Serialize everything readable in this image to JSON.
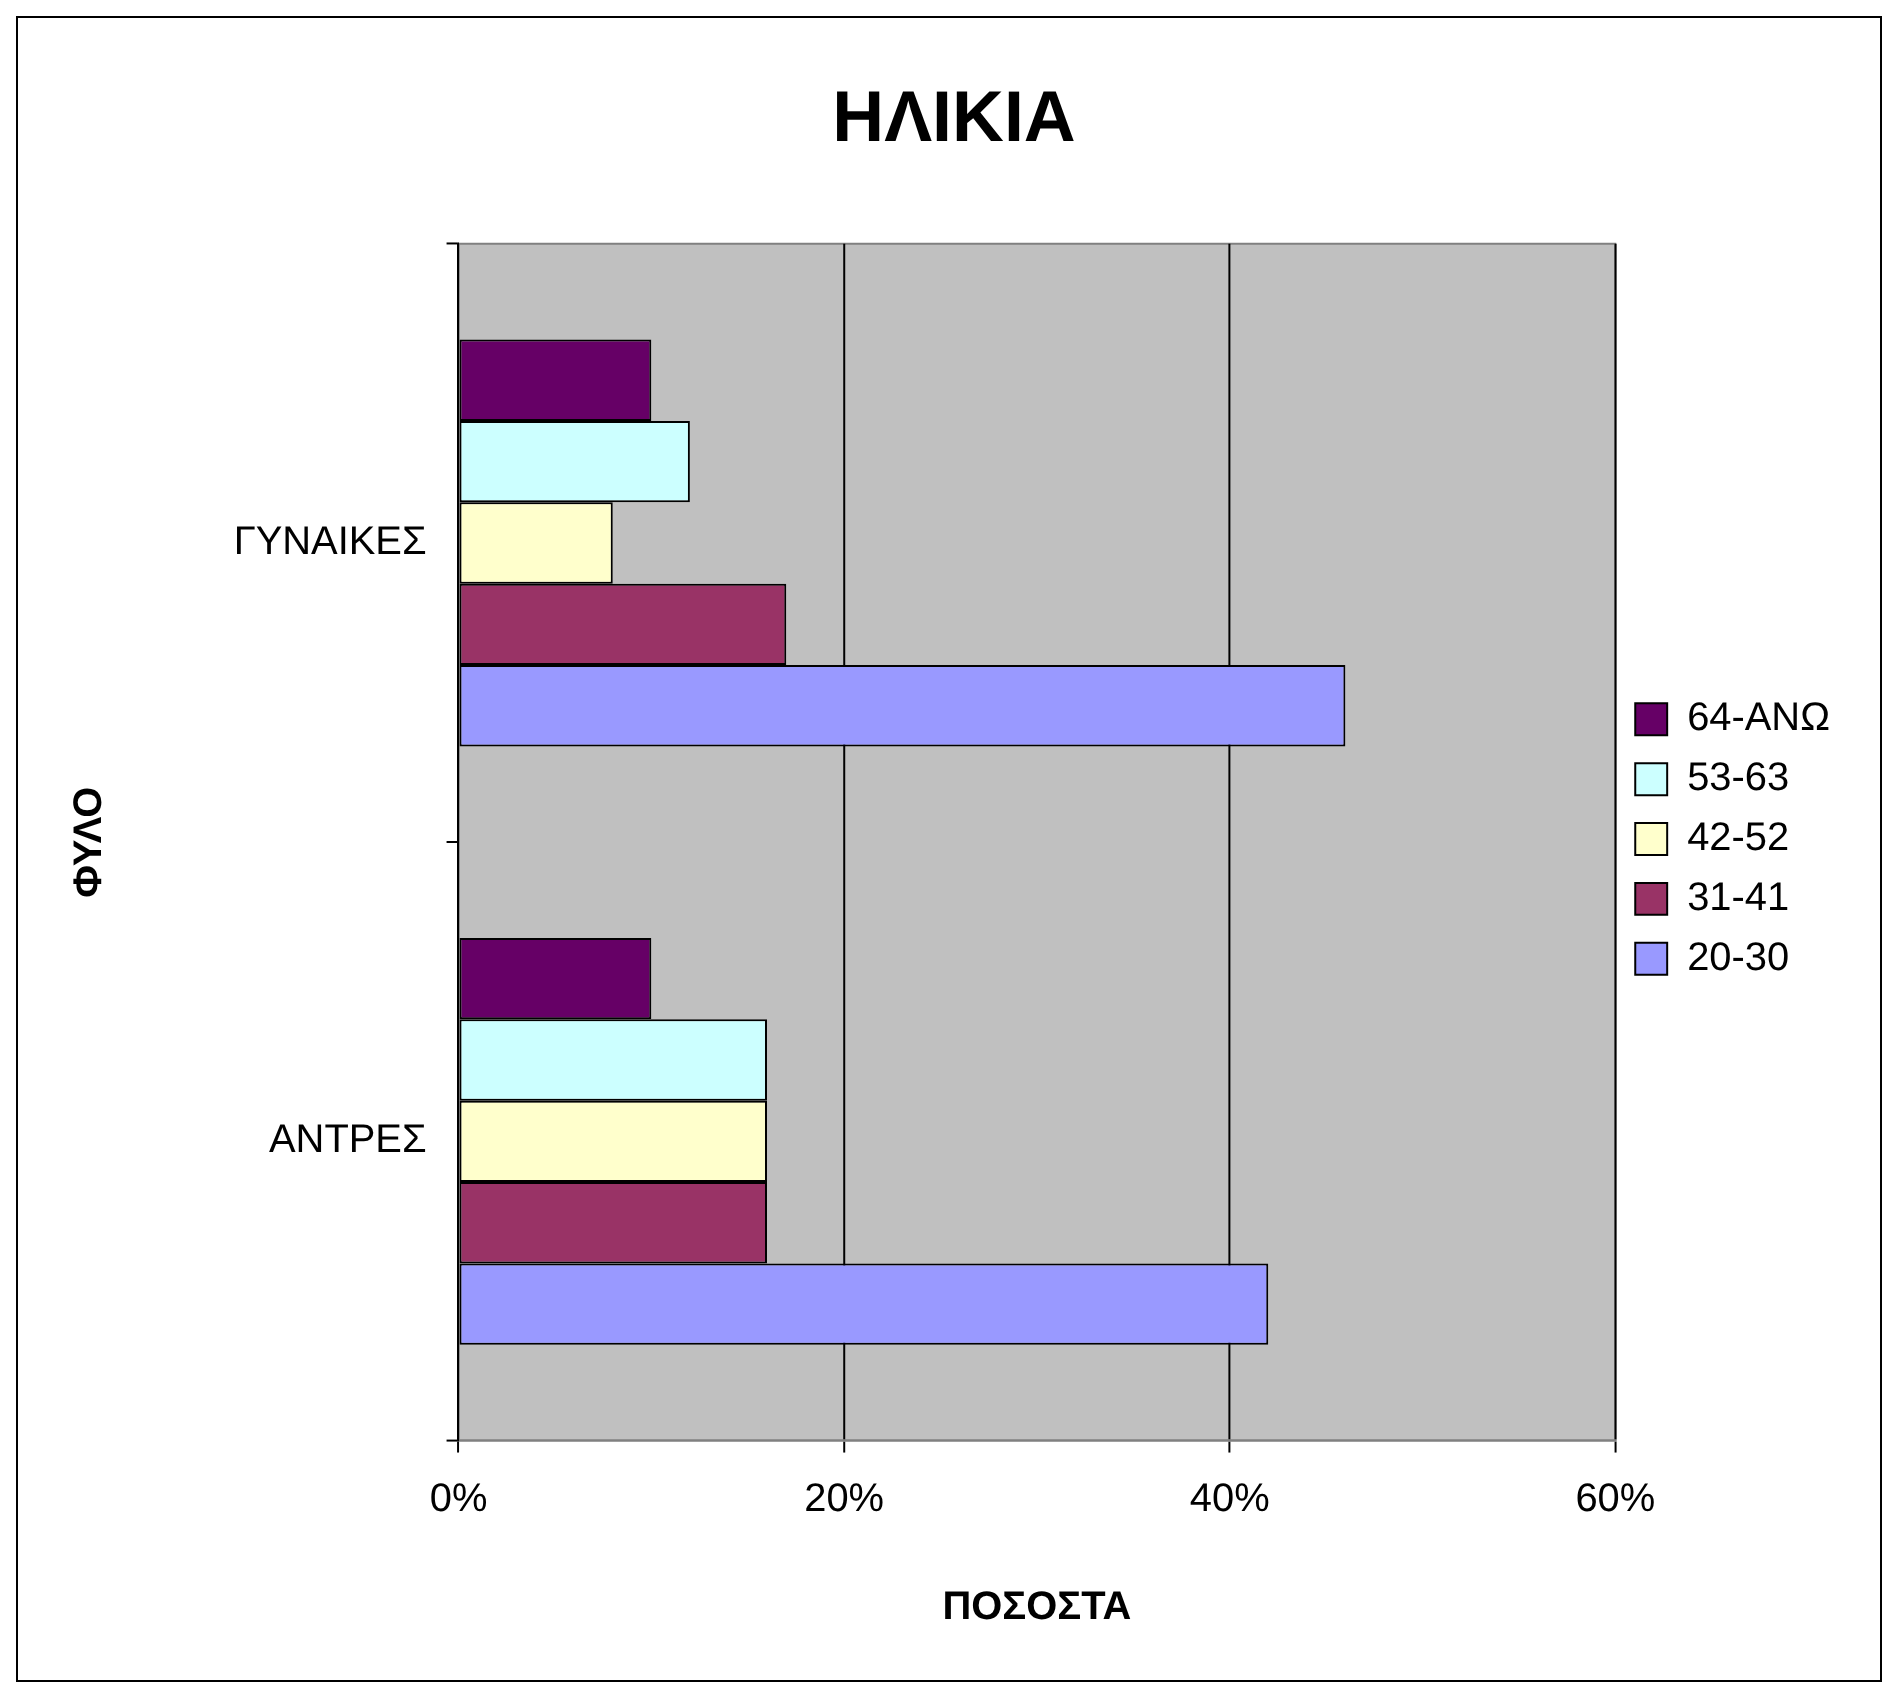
{
  "chart_data": {
    "type": "bar",
    "orientation": "horizontal",
    "title": "ΗΛΙΚΙΑ",
    "xlabel": "ΠΟΣΟΣΤΑ",
    "ylabel": "ΦΥΛΟ",
    "categories": [
      "ΓΥΝΑΙΚΕΣ",
      "ΑΝΤΡΕΣ"
    ],
    "series": [
      {
        "name": "64-ΑΝΩ",
        "color": "#660066",
        "values": [
          10,
          10
        ]
      },
      {
        "name": "53-63",
        "color": "#ccffff",
        "values": [
          12,
          16
        ]
      },
      {
        "name": "42-52",
        "color": "#ffffcc",
        "values": [
          8,
          16
        ]
      },
      {
        "name": "31-41",
        "color": "#993366",
        "values": [
          17,
          16
        ]
      },
      {
        "name": "20-30",
        "color": "#9999ff",
        "values": [
          46,
          42
        ]
      }
    ],
    "xlim": [
      0,
      60
    ],
    "xticks": [
      {
        "value": 0,
        "label": "0%"
      },
      {
        "value": 20,
        "label": "20%"
      },
      {
        "value": 40,
        "label": "40%"
      },
      {
        "value": 60,
        "label": "60%"
      }
    ],
    "grid": "x",
    "legend": "right"
  }
}
